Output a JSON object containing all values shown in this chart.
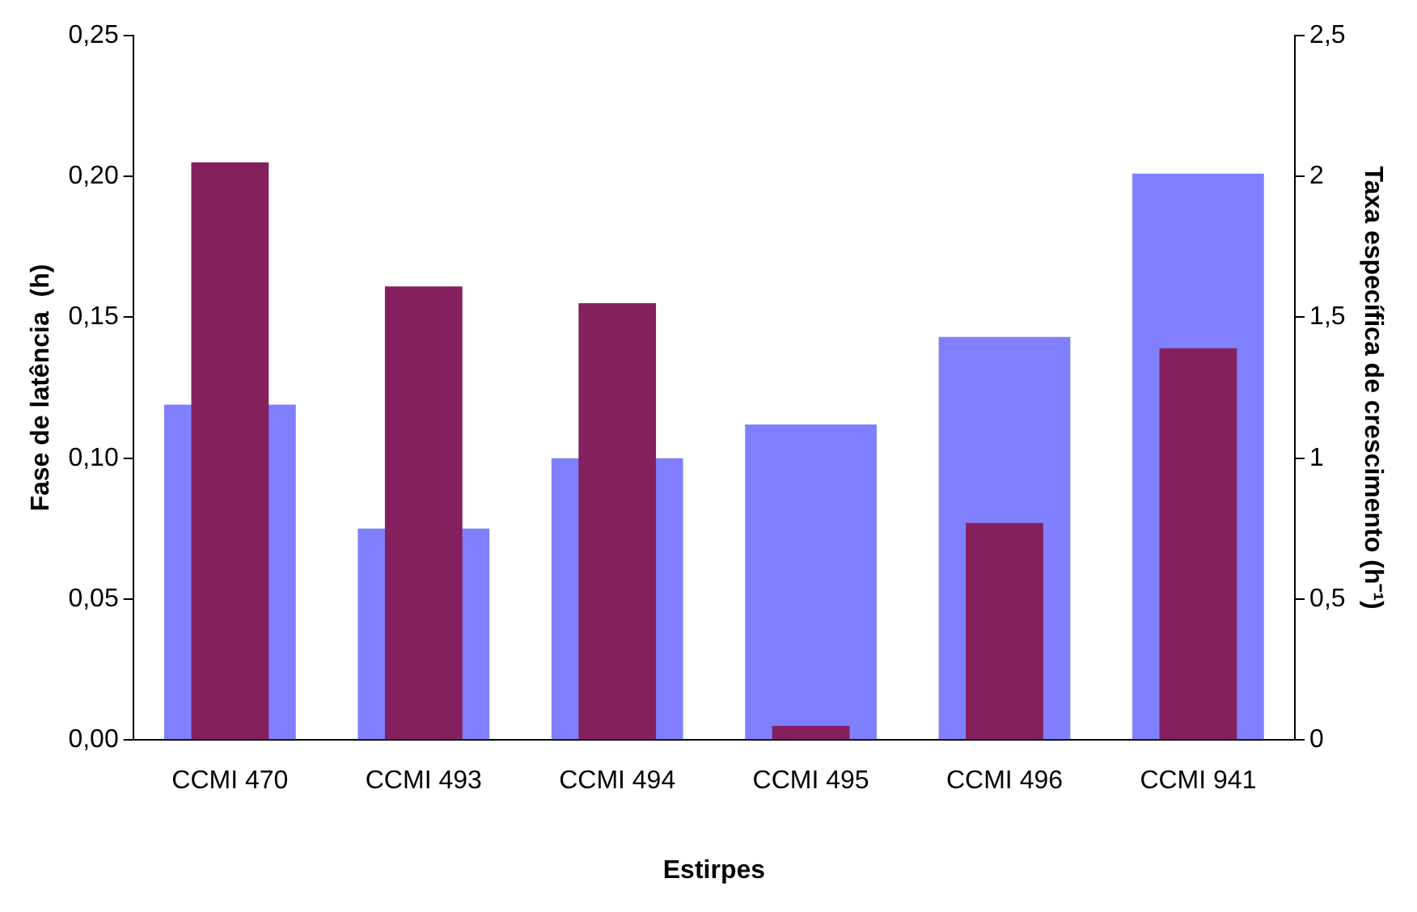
{
  "chart_data": {
    "type": "bar",
    "xlabel": "Estirpes",
    "ylabel": "Fase de latência  (h)",
    "y2label": "Taxa específica de crescimento (h⁻¹)",
    "categories": [
      "CCMI 470",
      "CCMI 493",
      "CCMI 494",
      "CCMI 495",
      "CCMI 496",
      "CCMI 941"
    ],
    "series": [
      {
        "color": "#8080ff",
        "axis": "y2",
        "values": [
          1.19,
          0.75,
          1.0,
          1.12,
          1.43,
          2.01
        ]
      },
      {
        "color": "#84205e",
        "axis": "y",
        "values": [
          0.205,
          0.161,
          0.155,
          0.005,
          0.077,
          0.139
        ]
      }
    ],
    "ylim": [
      0,
      0.25
    ],
    "yticks": [
      {
        "value": 0,
        "label": "0,00"
      },
      {
        "value": 0.05,
        "label": "0,05"
      },
      {
        "value": 0.1,
        "label": "0,10"
      },
      {
        "value": 0.15,
        "label": "0,15"
      },
      {
        "value": 0.2,
        "label": "0,20"
      },
      {
        "value": 0.25,
        "label": "0,25"
      }
    ],
    "y2lim": [
      0,
      2.5
    ],
    "y2ticks": [
      0,
      {
        "value": 0.5,
        "label": "0,5"
      },
      1,
      {
        "value": 1.5,
        "label": "1,5"
      },
      2,
      {
        "value": 2.5,
        "label": "2,5"
      }
    ],
    "grid": false,
    "legend": false
  }
}
